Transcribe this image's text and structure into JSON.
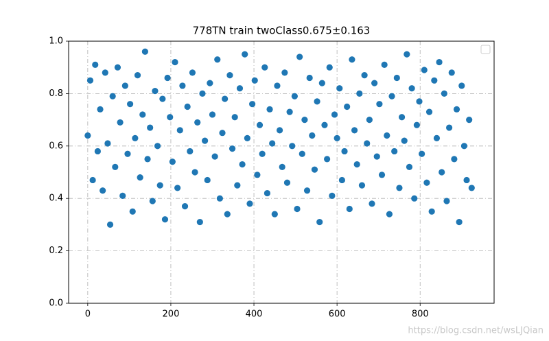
{
  "chart_data": {
    "type": "scatter",
    "title": "778TN train twoClass0.675±0.163",
    "watermark": "https://blog.csdn.net/wsLJQian",
    "xlim": [
      -46,
      978
    ],
    "ylim": [
      0,
      1
    ],
    "xticks": [
      0,
      200,
      400,
      600,
      800
    ],
    "yticks": [
      {
        "value": 0,
        "label": "0.0"
      },
      0.2,
      0.4,
      0.6,
      0.8,
      {
        "value": 1,
        "label": "1.0"
      }
    ],
    "grid": true,
    "legend": "upper right",
    "series": [
      {
        "color": "#1f77b4",
        "x": [
          0,
          6,
          12,
          18,
          24,
          30,
          36,
          42,
          48,
          54,
          60,
          66,
          72,
          78,
          84,
          90,
          96,
          102,
          108,
          114,
          120,
          126,
          132,
          138,
          144,
          150,
          156,
          162,
          168,
          174,
          180,
          186,
          192,
          198,
          204,
          210,
          216,
          222,
          228,
          234,
          240,
          246,
          252,
          258,
          264,
          270,
          276,
          282,
          288,
          294,
          300,
          306,
          312,
          318,
          324,
          330,
          336,
          342,
          348,
          354,
          360,
          366,
          372,
          378,
          384,
          390,
          396,
          402,
          408,
          414,
          420,
          426,
          432,
          438,
          444,
          450,
          456,
          462,
          468,
          474,
          480,
          486,
          492,
          498,
          504,
          510,
          516,
          522,
          528,
          534,
          540,
          546,
          552,
          558,
          564,
          570,
          576,
          582,
          588,
          594,
          600,
          606,
          612,
          618,
          624,
          630,
          636,
          642,
          648,
          654,
          660,
          666,
          672,
          678,
          684,
          690,
          696,
          702,
          708,
          714,
          720,
          726,
          732,
          738,
          744,
          750,
          756,
          762,
          768,
          774,
          780,
          786,
          792,
          798,
          804,
          810,
          816,
          822,
          828,
          834,
          840,
          846,
          852,
          858,
          864,
          870,
          876,
          882,
          888,
          894,
          900,
          906,
          912,
          918,
          924
        ],
        "values": [
          0.64,
          0.85,
          0.47,
          0.91,
          0.58,
          0.74,
          0.43,
          0.88,
          0.61,
          0.3,
          0.79,
          0.52,
          0.9,
          0.69,
          0.41,
          0.83,
          0.57,
          0.76,
          0.35,
          0.63,
          0.87,
          0.48,
          0.72,
          0.96,
          0.55,
          0.67,
          0.39,
          0.81,
          0.6,
          0.45,
          0.78,
          0.32,
          0.86,
          0.71,
          0.54,
          0.92,
          0.44,
          0.66,
          0.83,
          0.37,
          0.75,
          0.58,
          0.88,
          0.5,
          0.69,
          0.31,
          0.8,
          0.62,
          0.47,
          0.84,
          0.72,
          0.56,
          0.93,
          0.4,
          0.65,
          0.78,
          0.34,
          0.87,
          0.59,
          0.71,
          0.45,
          0.82,
          0.53,
          0.95,
          0.63,
          0.38,
          0.76,
          0.85,
          0.49,
          0.68,
          0.57,
          0.9,
          0.42,
          0.74,
          0.61,
          0.34,
          0.83,
          0.66,
          0.52,
          0.88,
          0.46,
          0.73,
          0.6,
          0.79,
          0.36,
          0.94,
          0.57,
          0.7,
          0.43,
          0.86,
          0.64,
          0.51,
          0.77,
          0.31,
          0.84,
          0.68,
          0.55,
          0.9,
          0.41,
          0.72,
          0.63,
          0.82,
          0.47,
          0.58,
          0.75,
          0.36,
          0.93,
          0.66,
          0.53,
          0.8,
          0.45,
          0.87,
          0.61,
          0.7,
          0.38,
          0.84,
          0.56,
          0.76,
          0.49,
          0.91,
          0.64,
          0.34,
          0.79,
          0.58,
          0.86,
          0.44,
          0.71,
          0.62,
          0.95,
          0.52,
          0.82,
          0.4,
          0.68,
          0.77,
          0.57,
          0.89,
          0.46,
          0.73,
          0.35,
          0.85,
          0.63,
          0.92,
          0.5,
          0.8,
          0.39,
          0.67,
          0.88,
          0.55,
          0.74,
          0.31,
          0.83,
          0.6,
          0.47,
          0.7,
          0.44
        ]
      }
    ]
  }
}
